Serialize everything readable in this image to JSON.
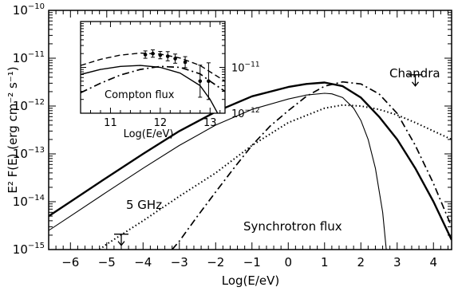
{
  "chart_data": [
    {
      "type": "line",
      "xlabel": "Log(E/eV)",
      "ylabel": "E² F(E) (erg cm⁻² s⁻¹)",
      "xlim": [
        -6.6,
        4.5
      ],
      "ylim": [
        1e-15,
        1e-10
      ],
      "yscale": "log",
      "x_ticks": [
        -6,
        -5,
        -4,
        -3,
        -2,
        -1,
        0,
        1,
        2,
        3,
        4
      ],
      "y_ticks": [
        {
          "mant": "10",
          "exp": "−15"
        },
        {
          "mant": "10",
          "exp": "−14"
        },
        {
          "mant": "10",
          "exp": "−13"
        },
        {
          "mant": "10",
          "exp": "−12"
        },
        {
          "mant": "10",
          "exp": "−11"
        },
        {
          "mant": "10",
          "exp": "−10"
        }
      ],
      "series": [
        {
          "style": "solid-thick",
          "x": [
            -6.6,
            -6,
            -5,
            -4,
            -3,
            -2,
            -1,
            0,
            0.5,
            1,
            1.5,
            2,
            2.5,
            3,
            3.5,
            4,
            4.5
          ],
          "y": [
            5e-15,
            1e-14,
            3.2e-14,
            1e-13,
            3e-13,
            7.6e-13,
            1.6e-12,
            2.5e-12,
            2.9e-12,
            3.1e-12,
            2.6e-12,
            1.5e-12,
            6e-13,
            2e-13,
            5e-14,
            1e-14,
            1.6e-15
          ]
        },
        {
          "style": "solid-thin",
          "x": [
            -6.6,
            -6,
            -5,
            -4,
            -3,
            -2,
            -1,
            0,
            0.5,
            1,
            1.2,
            1.5,
            1.8,
            2,
            2.2,
            2.4,
            2.6,
            2.7
          ],
          "y": [
            2.5e-15,
            5e-15,
            1.6e-14,
            5e-14,
            1.5e-13,
            4e-13,
            8.5e-13,
            1.4e-12,
            1.7e-12,
            1.85e-12,
            1.8e-12,
            1.5e-12,
            9e-13,
            5e-13,
            2e-13,
            5e-14,
            6e-15,
            1e-15
          ]
        },
        {
          "style": "dotted",
          "x": [
            -5.2,
            -5,
            -4,
            -3,
            -2,
            -1,
            0,
            1,
            1.5,
            2,
            2.5,
            3,
            3.5,
            4,
            4.5
          ],
          "y": [
            1e-15,
            1.3e-15,
            4e-15,
            1.3e-14,
            4e-14,
            1.5e-13,
            4.5e-13,
            9e-13,
            1.05e-12,
            1e-12,
            8.5e-13,
            6.5e-13,
            4.5e-13,
            3e-13,
            2e-13
          ]
        },
        {
          "style": "dash-dot",
          "x": [
            -3.2,
            -3,
            -2.5,
            -2,
            -1.5,
            -1,
            -0.5,
            0,
            0.5,
            1,
            1.5,
            2,
            2.5,
            3,
            3.5,
            4,
            4.5
          ],
          "y": [
            1e-15,
            1.5e-15,
            5e-15,
            1.6e-14,
            5e-14,
            1.5e-13,
            3.8e-13,
            8e-13,
            1.6e-12,
            2.6e-12,
            3.2e-12,
            2.9e-12,
            1.8e-12,
            7e-13,
            1.5e-13,
            2.4e-14,
            3e-15
          ]
        }
      ],
      "upper_limits": [
        {
          "label": "5 GHz",
          "x": -4.6,
          "y": 2.1e-15
        },
        {
          "label": "Chandra",
          "x": 3.5,
          "y": 4.5e-12
        }
      ],
      "annotations": [
        "Synchrotron flux",
        "5 GHz",
        "Chandra"
      ]
    },
    {
      "type": "line",
      "xlabel": "Log(E/eV)",
      "xlim": [
        10.4,
        13.3
      ],
      "ylim": [
        1e-12,
        1e-10
      ],
      "yscale": "log",
      "x_ticks": [
        11,
        12,
        13
      ],
      "y_ticks": [
        {
          "mant": "10",
          "exp": "−11"
        },
        {
          "mant": "10",
          "exp": "−12"
        }
      ],
      "series": [
        {
          "style": "dashed",
          "x": [
            10.4,
            10.8,
            11.2,
            11.6,
            12.0,
            12.4,
            12.8,
            13.0,
            13.3
          ],
          "y": [
            1.1e-11,
            1.5e-11,
            1.85e-11,
            2.05e-11,
            1.95e-11,
            1.6e-11,
            1.1e-11,
            8e-12,
            5e-12
          ]
        },
        {
          "style": "solid",
          "x": [
            10.4,
            10.8,
            11.2,
            11.6,
            12.0,
            12.4,
            12.8,
            13.0,
            13.2
          ],
          "y": [
            7e-12,
            9e-12,
            1.05e-11,
            1.1e-11,
            1e-11,
            7.5e-12,
            4e-12,
            2e-12,
            8e-13
          ]
        },
        {
          "style": "dash-dot",
          "x": [
            10.4,
            10.8,
            11.2,
            11.6,
            12.0,
            12.4,
            12.8,
            13.0,
            13.3
          ],
          "y": [
            2.8e-12,
            4.5e-12,
            6.8e-12,
            9e-12,
            1.05e-11,
            1e-11,
            7.2e-12,
            5e-12,
            3e-12
          ]
        }
      ],
      "points": [
        {
          "x": 11.7,
          "y": 1.9e-11,
          "err": 0.08
        },
        {
          "x": 11.85,
          "y": 2e-11,
          "err": 0.08
        },
        {
          "x": 12.0,
          "y": 1.85e-11,
          "err": 0.08
        },
        {
          "x": 12.15,
          "y": 1.75e-11,
          "err": 0.1
        },
        {
          "x": 12.3,
          "y": 1.55e-11,
          "err": 0.1
        },
        {
          "x": 12.5,
          "y": 1.3e-11,
          "err": 0.12
        },
        {
          "x": 12.8,
          "y": 5e-12,
          "err": 0.35
        },
        {
          "x": 12.97,
          "y": 5e-12,
          "err": 0.4
        }
      ],
      "annotations": [
        "Compton flux"
      ]
    }
  ]
}
